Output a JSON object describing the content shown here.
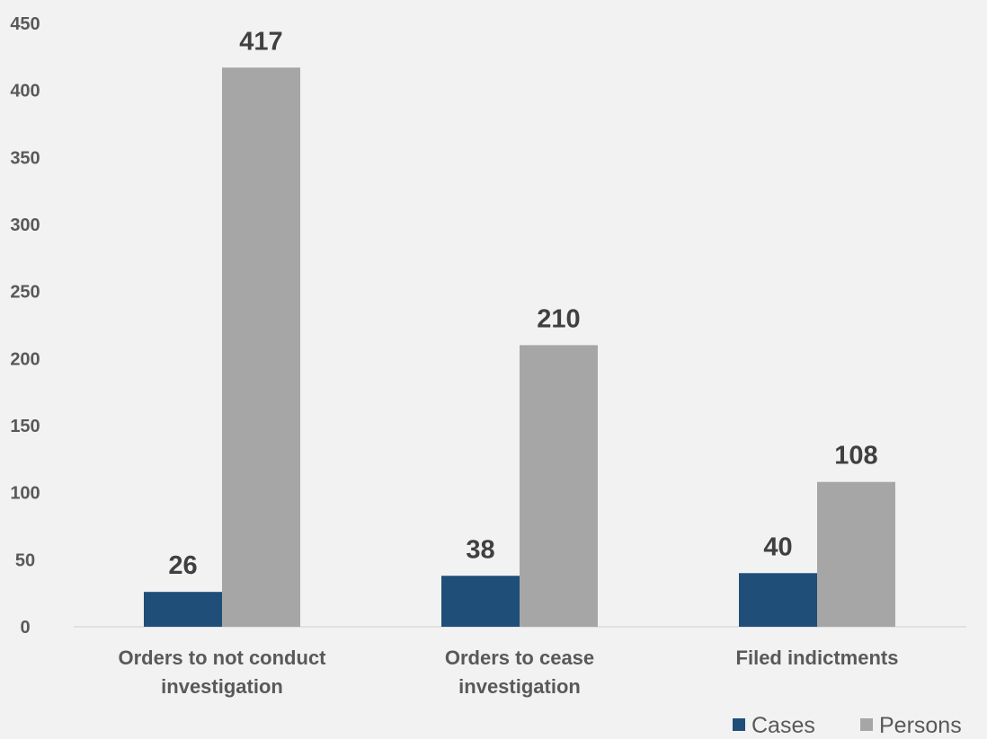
{
  "chart_data": {
    "type": "bar",
    "title": "",
    "xlabel": "",
    "ylabel": "",
    "categories": [
      [
        "Orders to not conduct",
        "investigation"
      ],
      [
        "Orders to cease",
        "investigation"
      ],
      [
        "Filed indictments"
      ]
    ],
    "series": [
      {
        "name": "Cases",
        "color": "#1f4e79",
        "values": [
          26,
          38,
          40
        ]
      },
      {
        "name": "Persons",
        "color": "#a6a6a6",
        "values": [
          417,
          210,
          108
        ]
      }
    ],
    "ylim": [
      0,
      450
    ],
    "yticks": [
      0,
      50,
      100,
      150,
      200,
      250,
      300,
      350,
      400,
      450
    ],
    "grid": false,
    "legend_position": "bottom-right",
    "data_labels": true
  }
}
